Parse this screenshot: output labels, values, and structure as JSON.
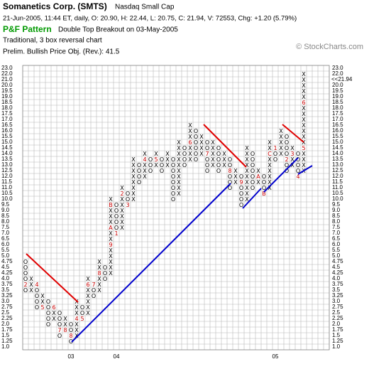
{
  "chart_data": {
    "type": "pnf",
    "title": "Somanetics Corp. (SMTS)",
    "exchange": "Nasdaq Small Cap",
    "quote_line": "21-Jun-2005, 11:44 ET, daily, O: 20.90, H: 22.44, L: 20.75, C: 21.94, V: 72553, Chg: +1.20 (5.79%)",
    "pattern_label": "P&F Pattern",
    "pattern": "Double Top Breakout on 03-May-2005",
    "chart_method": "Traditional, 3 box reversal chart",
    "price_objective": "Prelim. Bullish Price Obj. (Rev.): 41.5",
    "watermark": "© StockCharts.com",
    "last_price": {
      "value": 21.94,
      "label": "<<21.94"
    },
    "symbol_color": "#000000",
    "month_color": "#cc0000",
    "highlight_color": "#cc0000",
    "grid": true,
    "ylim": [
      1,
      23
    ],
    "yticks": [
      {
        "value": 1,
        "label": "1.0"
      },
      1.25,
      1.5,
      1.75,
      {
        "value": 2,
        "label": "2.0"
      },
      2.25,
      2.5,
      2.75,
      {
        "value": 3,
        "label": "3.0"
      },
      3.25,
      3.5,
      3.75,
      {
        "value": 4,
        "label": "4.0"
      },
      4.25,
      4.5,
      4.75,
      {
        "value": 5,
        "label": "5.0"
      },
      5.5,
      {
        "value": 6,
        "label": "6.0"
      },
      6.5,
      {
        "value": 7,
        "label": "7.0"
      },
      7.5,
      {
        "value": 8,
        "label": "8.0"
      },
      8.5,
      {
        "value": 9,
        "label": "9.0"
      },
      9.5,
      {
        "value": 10,
        "label": "10.0"
      },
      10.5,
      {
        "value": 11,
        "label": "11.0"
      },
      11.5,
      {
        "value": 12,
        "label": "12.0"
      },
      12.5,
      {
        "value": 13,
        "label": "13.0"
      },
      13.5,
      {
        "value": 14,
        "label": "14.0"
      },
      14.5,
      {
        "value": 15,
        "label": "15.0"
      },
      15.5,
      {
        "value": 16,
        "label": "16.0"
      },
      16.5,
      {
        "value": 17,
        "label": "17.0"
      },
      17.5,
      {
        "value": 18,
        "label": "18.0"
      },
      18.5,
      {
        "value": 19,
        "label": "19.0"
      },
      19.5,
      {
        "value": 20,
        "label": "20.0"
      },
      {
        "value": 21,
        "label": "21.0"
      },
      {
        "value": 22,
        "label": "22.0"
      },
      {
        "value": 23,
        "label": "23.0"
      }
    ],
    "columns": [
      {
        "type": "O",
        "low": 3.5,
        "high": 4.75,
        "months": [
          {
            "value": 3.75,
            "label": "2"
          }
        ]
      },
      {
        "type": "X",
        "low": 3.5,
        "high": 4.0,
        "months": []
      },
      {
        "type": "O",
        "low": 2.75,
        "high": 3.75,
        "months": [
          {
            "value": 3.75,
            "label": "4"
          }
        ]
      },
      {
        "type": "X",
        "low": 2.75,
        "high": 3.25,
        "months": [
          {
            "value": 2.75,
            "label": "5"
          }
        ]
      },
      {
        "type": "O",
        "low": 2.0,
        "high": 3.0,
        "months": []
      },
      {
        "type": "X",
        "low": 2.25,
        "high": 2.75,
        "months": [
          {
            "value": 2.75,
            "label": "6"
          }
        ]
      },
      {
        "type": "O",
        "low": 1.5,
        "high": 2.5,
        "months": [
          {
            "value": 1.75,
            "label": "7"
          }
        ]
      },
      {
        "type": "X",
        "low": 1.75,
        "high": 2.25,
        "months": [
          {
            "value": 1.75,
            "label": "8"
          }
        ]
      },
      {
        "type": "O",
        "low": 1.25,
        "high": 2.0,
        "year_label": "03",
        "months": [
          {
            "value": 1.5,
            "label": "8"
          }
        ]
      },
      {
        "type": "X",
        "low": 1.5,
        "high": 3.0,
        "months": [
          {
            "value": 2.25,
            "label": "4"
          }
        ]
      },
      {
        "type": "O",
        "low": 2.25,
        "high": 2.75,
        "months": [
          {
            "value": 2.25,
            "label": "5"
          }
        ]
      },
      {
        "type": "X",
        "low": 2.5,
        "high": 4.0,
        "months": [
          {
            "value": 3.75,
            "label": "6"
          }
        ]
      },
      {
        "type": "O",
        "low": 3.25,
        "high": 3.75,
        "months": [
          {
            "value": 3.75,
            "label": "7"
          }
        ]
      },
      {
        "type": "X",
        "low": 3.5,
        "high": 4.75,
        "months": [
          {
            "value": 4.25,
            "label": "8"
          }
        ]
      },
      {
        "type": "O",
        "low": 4.0,
        "high": 4.5,
        "months": []
      },
      {
        "type": "X",
        "low": 4.25,
        "high": 10.0,
        "months": [
          {
            "value": 6.0,
            "label": "9"
          },
          {
            "value": 7.5,
            "label": "A"
          },
          {
            "value": 9.5,
            "label": "B"
          }
        ]
      },
      {
        "type": "O",
        "low": 7.0,
        "high": 9.5,
        "year_label": "04",
        "months": [
          {
            "value": 7.0,
            "label": "1"
          }
        ]
      },
      {
        "type": "X",
        "low": 7.5,
        "high": 11.0,
        "months": [
          {
            "value": 10.5,
            "label": "2"
          }
        ]
      },
      {
        "type": "O",
        "low": 9.5,
        "high": 10.5,
        "months": [
          {
            "value": 9.5,
            "label": "3"
          }
        ]
      },
      {
        "type": "X",
        "low": 10.0,
        "high": 13.5,
        "months": []
      },
      {
        "type": "O",
        "low": 11.5,
        "high": 13.0,
        "months": []
      },
      {
        "type": "X",
        "low": 12.0,
        "high": 14.0,
        "months": [
          {
            "value": 13.5,
            "label": "4"
          }
        ]
      },
      {
        "type": "O",
        "low": 12.5,
        "high": 13.5,
        "months": []
      },
      {
        "type": "X",
        "low": 13.0,
        "high": 14.0,
        "months": [
          {
            "value": 13.5,
            "label": "5"
          }
        ]
      },
      {
        "type": "O",
        "low": 12.5,
        "high": 13.5,
        "months": []
      },
      {
        "type": "X",
        "low": 13.0,
        "high": 14.0,
        "months": []
      },
      {
        "type": "O",
        "low": 10.0,
        "high": 13.5,
        "months": []
      },
      {
        "type": "X",
        "low": 10.5,
        "high": 15.0,
        "months": []
      },
      {
        "type": "O",
        "low": 13.0,
        "high": 14.5,
        "months": []
      },
      {
        "type": "X",
        "low": 13.5,
        "high": 16.5,
        "months": [
          {
            "value": 15.0,
            "label": "6"
          }
        ]
      },
      {
        "type": "O",
        "low": 13.5,
        "high": 16.0,
        "months": []
      },
      {
        "type": "X",
        "low": 14.0,
        "high": 15.5,
        "months": []
      },
      {
        "type": "O",
        "low": 12.5,
        "high": 15.0,
        "months": [
          {
            "value": 14.0,
            "label": "7"
          }
        ]
      },
      {
        "type": "X",
        "low": 13.0,
        "high": 15.0,
        "months": []
      },
      {
        "type": "O",
        "low": 12.5,
        "high": 14.5,
        "months": []
      },
      {
        "type": "X",
        "low": 13.0,
        "high": 14.0,
        "months": []
      },
      {
        "type": "O",
        "low": 11.0,
        "high": 13.5,
        "months": [
          {
            "value": 12.5,
            "label": "8"
          }
        ]
      },
      {
        "type": "X",
        "low": 11.5,
        "high": 12.5,
        "months": []
      },
      {
        "type": "O",
        "low": 9.5,
        "high": 12.0,
        "months": [
          {
            "value": 11.5,
            "label": "9"
          }
        ]
      },
      {
        "type": "X",
        "low": 10.0,
        "high": 14.5,
        "months": []
      },
      {
        "type": "O",
        "low": 11.0,
        "high": 14.0,
        "months": []
      },
      {
        "type": "X",
        "low": 11.5,
        "high": 12.5,
        "months": [
          {
            "value": 12.0,
            "label": "A"
          }
        ]
      },
      {
        "type": "O",
        "low": 10.5,
        "high": 12.0,
        "months": [
          {
            "value": 10.5,
            "label": "B"
          }
        ]
      },
      {
        "type": "X",
        "low": 11.0,
        "high": 15.0,
        "months": [
          {
            "value": 14.0,
            "label": "C"
          }
        ]
      },
      {
        "type": "O",
        "low": 13.5,
        "high": 14.5,
        "year_label": "05",
        "months": [
          {
            "value": 14.5,
            "label": "1"
          }
        ]
      },
      {
        "type": "X",
        "low": 14.0,
        "high": 16.0,
        "months": []
      },
      {
        "type": "O",
        "low": 12.5,
        "high": 15.5,
        "months": [
          {
            "value": 13.5,
            "label": "2"
          }
        ]
      },
      {
        "type": "X",
        "low": 13.0,
        "high": 14.5,
        "months": [
          {
            "value": 14.0,
            "label": "3"
          }
        ]
      },
      {
        "type": "O",
        "low": 12.0,
        "high": 14.0,
        "months": [
          {
            "value": 12.0,
            "label": "4"
          }
        ]
      },
      {
        "type": "X",
        "low": 12.5,
        "high": 22.0,
        "months": [
          {
            "value": 14.5,
            "label": "5"
          },
          {
            "value": 18.5,
            "label": "6"
          }
        ]
      }
    ]
  }
}
